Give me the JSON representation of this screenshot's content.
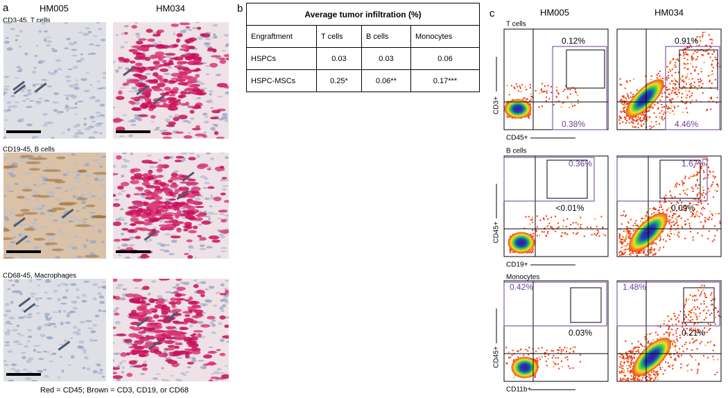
{
  "panel_a": {
    "label": "a",
    "columns": [
      "HM005",
      "HM034"
    ],
    "rows": [
      "CD3-45, T cells",
      "CD19-45, B cells",
      "CD68-45, Macrophages"
    ],
    "caption": "Red = CD45; Brown = CD3, CD19, or CD68"
  },
  "panel_b": {
    "label": "b",
    "table": {
      "title": "Average tumor infiltration (%)",
      "header": [
        "Engraftment",
        "T cells",
        "B cells",
        "Monocytes"
      ],
      "rows": [
        [
          "HSPCs",
          "0.03",
          "0.03",
          "0.06"
        ],
        [
          "HSPC-MSCs",
          "0.25*",
          "0.06**",
          "0.17***"
        ]
      ]
    }
  },
  "panel_c": {
    "label": "c",
    "columns": [
      "HM005",
      "HM034"
    ],
    "rows": [
      {
        "name": "T cells",
        "y_label": "CD3+",
        "x_label": "CD45+",
        "gates": [
          [
            {
              "label": "0.12%",
              "color": "#000000"
            },
            {
              "label": "0.38%",
              "color": "#6a3d9a"
            }
          ],
          [
            {
              "label": "0.91%",
              "color": "#000000"
            },
            {
              "label": "4.46%",
              "color": "#6a3d9a"
            }
          ]
        ]
      },
      {
        "name": "B cells",
        "y_label": "CD45+",
        "x_label": "CD19+",
        "gates": [
          [
            {
              "label": "0.36%",
              "color": "#6a3d9a"
            },
            {
              "label": "<0.01%",
              "color": "#000000"
            }
          ],
          [
            {
              "label": "1.67%",
              "color": "#6a3d9a"
            },
            {
              "label": "0.09%",
              "color": "#000000"
            }
          ]
        ]
      },
      {
        "name": "Monocytes",
        "y_label": "CD45+",
        "x_label": "CD11b+",
        "gates": [
          [
            {
              "label": "0.42%",
              "color": "#6a3d9a"
            },
            {
              "label": "0.03%",
              "color": "#000000"
            }
          ],
          [
            {
              "label": "1.48%",
              "color": "#6a3d9a"
            },
            {
              "label": "0.21%",
              "color": "#000000"
            }
          ]
        ]
      }
    ]
  }
}
